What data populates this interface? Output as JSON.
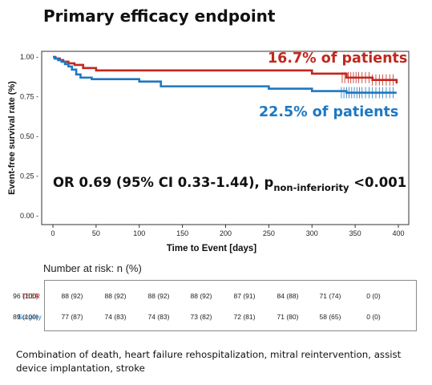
{
  "title": "Primary efficacy endpoint",
  "chart_data": {
    "type": "line",
    "subtype": "kaplan-meier",
    "xlabel": "Time to Event [days]",
    "ylabel": "Event-free survival rate (%)",
    "xlim": [
      -15,
      415
    ],
    "ylim": [
      0,
      1.0
    ],
    "xticks": [
      0,
      50,
      100,
      150,
      200,
      250,
      300,
      350,
      400
    ],
    "yticks": [
      0.0,
      0.25,
      0.5,
      0.75,
      1.0
    ],
    "ytick_labels": [
      "0.00 -",
      "0.25 -",
      "0.50 -",
      "0.75 -",
      "1.00 -"
    ],
    "grid": false,
    "series": [
      {
        "color": "#c0281f",
        "steps": [
          [
            0,
            1.0
          ],
          [
            3,
            0.99
          ],
          [
            8,
            0.98
          ],
          [
            12,
            0.97
          ],
          [
            18,
            0.96
          ],
          [
            25,
            0.95
          ],
          [
            35,
            0.93
          ],
          [
            50,
            0.915
          ],
          [
            275,
            0.915
          ],
          [
            300,
            0.895
          ],
          [
            340,
            0.87
          ],
          [
            370,
            0.855
          ],
          [
            398,
            0.833
          ]
        ],
        "censor": [
          [
            335,
            0.87
          ],
          [
            338,
            0.87
          ],
          [
            342,
            0.87
          ],
          [
            345,
            0.87
          ],
          [
            348,
            0.87
          ],
          [
            351,
            0.87
          ],
          [
            354,
            0.87
          ],
          [
            358,
            0.87
          ],
          [
            362,
            0.87
          ],
          [
            366,
            0.87
          ],
          [
            370,
            0.855
          ],
          [
            374,
            0.855
          ],
          [
            378,
            0.855
          ],
          [
            382,
            0.855
          ],
          [
            386,
            0.855
          ],
          [
            390,
            0.855
          ],
          [
            394,
            0.855
          ]
        ]
      },
      {
        "color": "#1f78c1",
        "steps": [
          [
            0,
            1.0
          ],
          [
            2,
            0.99
          ],
          [
            6,
            0.98
          ],
          [
            10,
            0.97
          ],
          [
            14,
            0.955
          ],
          [
            18,
            0.94
          ],
          [
            22,
            0.92
          ],
          [
            27,
            0.89
          ],
          [
            32,
            0.87
          ],
          [
            45,
            0.86
          ],
          [
            100,
            0.845
          ],
          [
            125,
            0.815
          ],
          [
            250,
            0.8
          ],
          [
            300,
            0.785
          ],
          [
            340,
            0.775
          ],
          [
            398,
            0.775
          ]
        ],
        "censor": [
          [
            334,
            0.775
          ],
          [
            337,
            0.775
          ],
          [
            340,
            0.775
          ],
          [
            343,
            0.775
          ],
          [
            346,
            0.775
          ],
          [
            349,
            0.775
          ],
          [
            352,
            0.775
          ],
          [
            355,
            0.775
          ],
          [
            358,
            0.775
          ],
          [
            362,
            0.775
          ],
          [
            366,
            0.775
          ],
          [
            370,
            0.775
          ],
          [
            374,
            0.775
          ],
          [
            378,
            0.775
          ],
          [
            382,
            0.775
          ],
          [
            386,
            0.775
          ],
          [
            390,
            0.775
          ],
          [
            394,
            0.775
          ]
        ]
      }
    ]
  },
  "annotations": {
    "red_label": "16.7% of patients",
    "blue_label": "22.5% of patients",
    "stat_main": "OR 0.69 (95% CI 0.33-1.44), p",
    "stat_sub": "non-inferiority",
    "stat_tail": " <0.001"
  },
  "risk_table": {
    "title": "Number at risk: n (%)",
    "rows": [
      {
        "label": "TEER",
        "color": "#c0281f",
        "values": [
          "96 (100)",
          "88 (92)",
          "88 (92)",
          "88 (92)",
          "88 (92)",
          "87 (91)",
          "84 (88)",
          "71 (74)",
          "0 (0)"
        ]
      },
      {
        "label": "Surgery",
        "color": "#1f78c1",
        "values": [
          "89 (100)",
          "77 (87)",
          "74 (83)",
          "74 (83)",
          "73 (82)",
          "72 (81)",
          "71 (80)",
          "58 (65)",
          "0 (0)"
        ]
      }
    ]
  },
  "footnote": "Combination of death, heart failure rehospitalization, mitral reintervention, assist device implantation, stroke"
}
